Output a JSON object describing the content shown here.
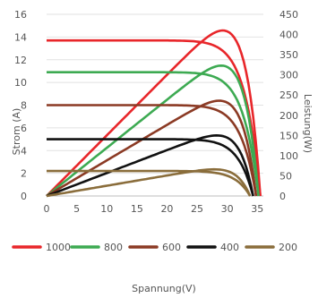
{
  "chart_data": {
    "type": "line",
    "title": "",
    "xlabel": "Spannung(V)",
    "ylabel_left": "Strom (A)",
    "ylabel_right": "Leistung(W)",
    "xlim": [
      0,
      36
    ],
    "ylim_left": [
      0,
      16
    ],
    "ylim_right": [
      0,
      450
    ],
    "x_ticks": [
      {
        "value": 0,
        "label": "0"
      },
      {
        "value": 5,
        "label": "5"
      },
      {
        "value": 10,
        "label": "10"
      },
      {
        "value": 15,
        "label": "15"
      },
      {
        "value": 20,
        "label": "20"
      },
      {
        "value": 25,
        "label": "25"
      },
      {
        "value": 30,
        "label": "30"
      },
      {
        "value": 35,
        "label": "35"
      }
    ],
    "y_ticks_left": [
      0,
      2,
      4,
      6,
      8,
      10,
      12,
      14,
      16
    ],
    "y_ticks_right": [
      0,
      50,
      100,
      150,
      200,
      250,
      300,
      350,
      400,
      450
    ],
    "grid": "horizontal",
    "legend_position": "bottom",
    "series": [
      {
        "name": "1000",
        "color": "#e8262a",
        "isc": 13.7,
        "voc": 35.5,
        "vmp": 29.5,
        "pmax": 410
      },
      {
        "name": "800",
        "color": "#3daa52",
        "isc": 10.9,
        "voc": 35.2,
        "vmp": 29.0,
        "pmax": 323
      },
      {
        "name": "600",
        "color": "#8b3a24",
        "isc": 8.0,
        "voc": 34.8,
        "vmp": 28.5,
        "pmax": 236
      },
      {
        "name": "400",
        "color": "#111111",
        "isc": 5.0,
        "voc": 34.3,
        "vmp": 28.0,
        "pmax": 150
      },
      {
        "name": "200",
        "color": "#8a6d3b",
        "isc": 2.2,
        "voc": 33.8,
        "vmp": 27.5,
        "pmax": 66
      }
    ]
  }
}
